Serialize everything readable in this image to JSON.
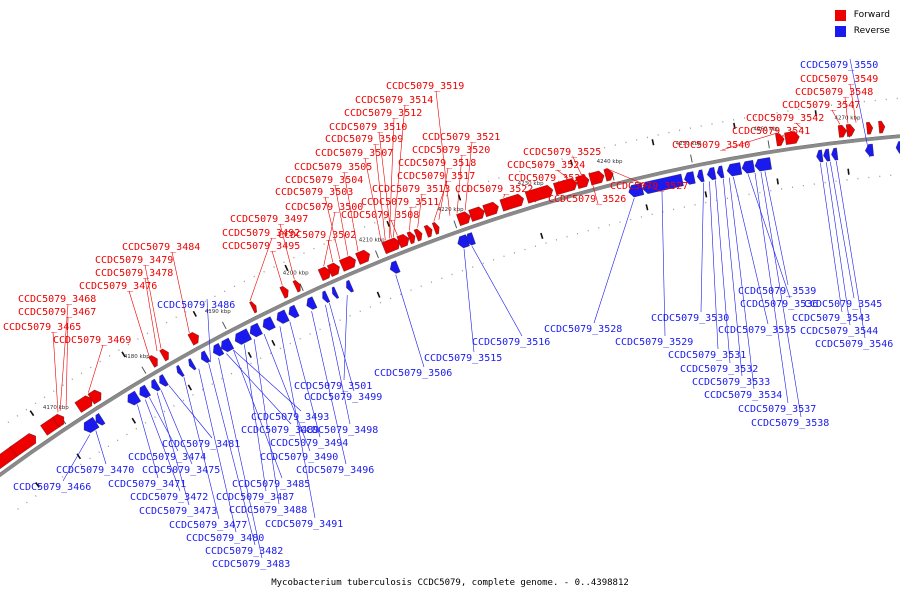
{
  "legend": {
    "forward_label": "Forward",
    "reverse_label": "Reverse",
    "forward_color": "#ee0000",
    "reverse_color": "#1a1aee"
  },
  "backbone_color": "#8a8a8a",
  "caption": "Mycobacterium tuberculosis CCDC5079, complete genome. - 0..4398812",
  "ticks": [
    "4170 kbp",
    "4180 kbp",
    "4190 kbp",
    "4200 kbp",
    "4210 kbp",
    "4220 kbp",
    "4230 kbp",
    "4240 kbp",
    "4250 kbp",
    "4260 kbp",
    "4270 kbp"
  ],
  "forward_genes": [
    "CCDC5079_3465",
    "CCDC5079_3467",
    "CCDC5079_3468",
    "CCDC5079_3469",
    "CCDC5079_3476",
    "CCDC5079_3478",
    "CCDC5079_3479",
    "CCDC5079_3484",
    "CCDC5079_3492",
    "CCDC5079_3495",
    "CCDC5079_3497",
    "CCDC5079_3500",
    "CCDC5079_3502",
    "CCDC5079_3503",
    "CCDC5079_3504",
    "CCDC5079_3505",
    "CCDC5079_3507",
    "CCDC5079_3508",
    "CCDC5079_3509",
    "CCDC5079_3510",
    "CCDC5079_3511",
    "CCDC5079_3512",
    "CCDC5079_3513",
    "CCDC5079_3514",
    "CCDC5079_3517",
    "CCDC5079_3518",
    "CCDC5079_3519",
    "CCDC5079_3520",
    "CCDC5079_3521",
    "CCDC5079_3522",
    "CCDC5079_3523",
    "CCDC5079_3524",
    "CCDC5079_3525",
    "CCDC5079_3526",
    "CCDC5079_3527",
    "CCDC5079_3540",
    "CCDC5079_3541",
    "CCDC5079_3542",
    "CCDC5079_3547",
    "CCDC5079_3548",
    "CCDC5079_3549"
  ],
  "reverse_genes": [
    "CCDC5079_3466",
    "CCDC5079_3470",
    "CCDC5079_3471",
    "CCDC5079_3472",
    "CCDC5079_3473",
    "CCDC5079_3474",
    "CCDC5079_3475",
    "CCDC5079_3477",
    "CCDC5079_3480",
    "CCDC5079_3481",
    "CCDC5079_3482",
    "CCDC5079_3483",
    "CCDC5079_3485",
    "CCDC5079_3486",
    "CCDC5079_3487",
    "CCDC5079_3488",
    "CCDC5079_3489",
    "CCDC5079_3490",
    "CCDC5079_3491",
    "CCDC5079_3493",
    "CCDC5079_3494",
    "CCDC5079_3496",
    "CCDC5079_3498",
    "CCDC5079_3499",
    "CCDC5079_3501",
    "CCDC5079_3506",
    "CCDC5079_3515",
    "CCDC5079_3516",
    "CCDC5079_3528",
    "CCDC5079_3529",
    "CCDC5079_3530",
    "CCDC5079_3531",
    "CCDC5079_3532",
    "CCDC5079_3533",
    "CCDC5079_3534",
    "CCDC5079_3535",
    "CCDC5079_3536",
    "CCDC5079_3537",
    "CCDC5079_3538",
    "CCDC5079_3539",
    "CCDC5079_3543",
    "CCDC5079_3544",
    "CCDC5079_3545",
    "CCDC5079_3546",
    "CCDC5079_3550"
  ]
}
